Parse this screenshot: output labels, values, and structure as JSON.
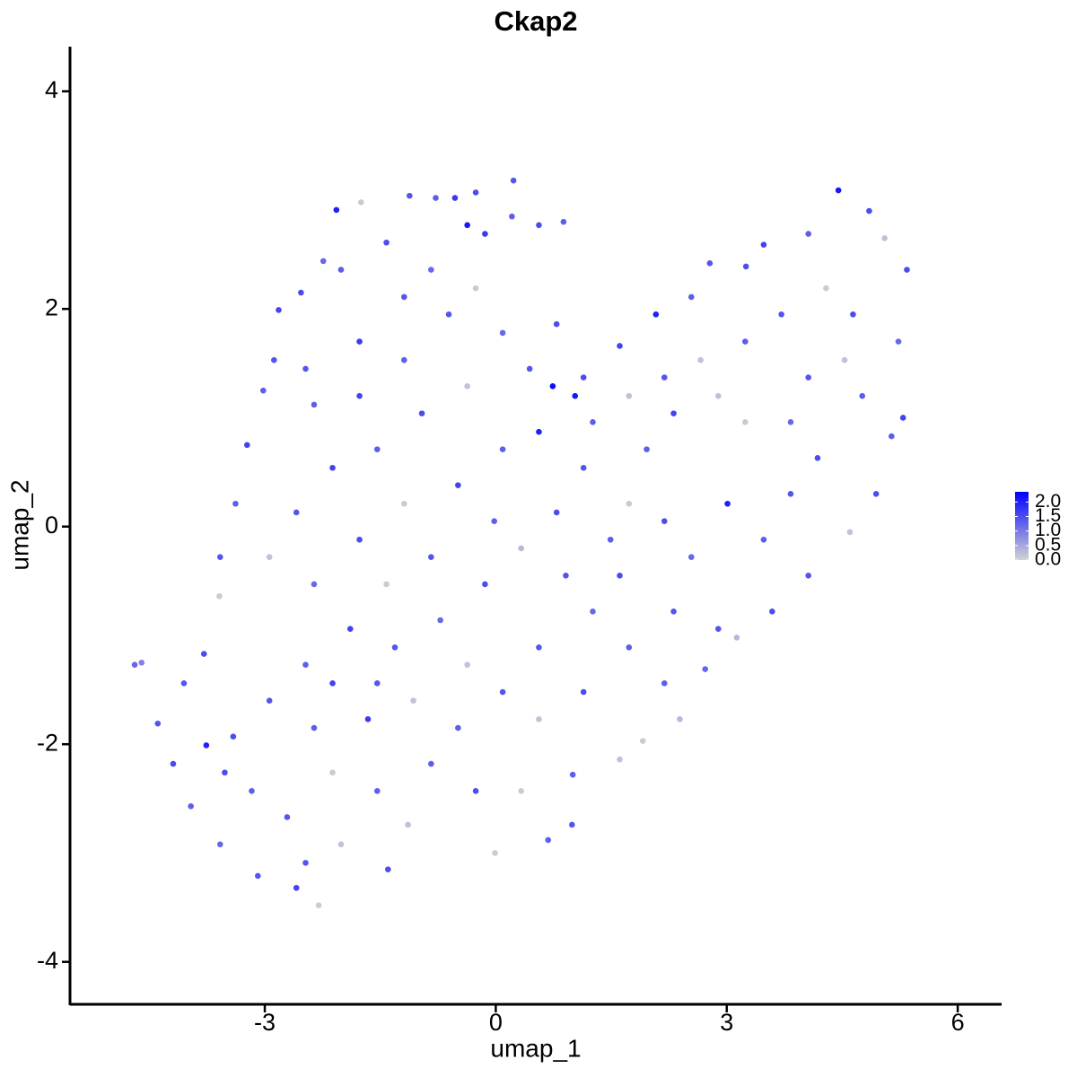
{
  "chart_data": {
    "type": "scatter",
    "title": "Ckap2",
    "x_label": "umap_1",
    "y_label": "umap_2",
    "xlim": [
      -5.53,
      6.57
    ],
    "ylim": [
      -4.39,
      4.41
    ],
    "xticks": [
      -3,
      0,
      3,
      6
    ],
    "yticks": [
      -4,
      -2,
      0,
      2,
      4
    ],
    "color_low": "#d3d3d3",
    "color_high": "#0000ff",
    "colorbar_lim": [
      0,
      2.35
    ],
    "legend": "right",
    "colorbar_ticks": [
      {
        "value": 0,
        "label": "0.0"
      },
      {
        "value": 0.5,
        "label": "0.5"
      },
      {
        "value": 1,
        "label": "1.0"
      },
      {
        "value": 1.5,
        "label": "1.5"
      },
      {
        "value": 2,
        "label": "2.0"
      }
    ],
    "x": [
      -4.69,
      -4.6,
      -4.39,
      -4.19,
      -3.96,
      -3.58,
      -3.09,
      -2.59,
      -2.3,
      -1.4,
      -1.14,
      -0.01,
      0.68,
      0.99,
      1.0,
      1.61,
      1.91,
      2.39,
      2.72,
      3.13,
      3.59,
      4.06,
      4.6,
      4.94,
      5.14,
      5.29,
      5.23,
      5.34,
      5.05,
      4.85,
      4.45,
      4.06,
      3.48,
      3.25,
      2.78,
      2.54,
      2.08,
      1.61,
      1.14,
      0.74,
      1.03,
      0.56,
      0.88,
      0.23,
      -0.26,
      -0.53,
      -0.78,
      -1.12,
      -1.75,
      -2.07,
      -2.24,
      -2.53,
      -2.82,
      -2.88,
      -3.02,
      -3.23,
      -3.38,
      -3.58,
      -3.59,
      -3.79,
      -4.05,
      -1.77,
      -1.19,
      -0.61,
      -0.26,
      0.09,
      0.44,
      -0.37,
      -0.96,
      -1.54,
      -2.12,
      -2.59,
      -2.94,
      -2.36,
      -1.77,
      -1.19,
      -0.49,
      0.09,
      0.56,
      1.14,
      1.73,
      1.49,
      0.91,
      0.33,
      -0.14,
      -0.72,
      -1.31,
      -1.89,
      -2.47,
      -2.94,
      -3.41,
      -3.17,
      -2.71,
      -2.12,
      -1.66,
      -1.07,
      -0.49,
      0.09,
      0.56,
      1.14,
      1.73,
      2.31,
      2.54,
      2.19,
      1.96,
      2.31,
      2.89,
      3.24,
      3.01,
      3.48,
      3.83,
      4.18,
      3.83,
      4.06,
      4.53,
      4.76,
      4.64,
      4.29,
      3.71,
      3.24,
      2.66,
      2.19,
      1.73,
      -0.02,
      -0.84,
      -1.42,
      0.79,
      1.26,
      0.56,
      -0.37,
      -0.84,
      -0.26,
      0.33,
      -1.54,
      -2.01,
      -2.47,
      -3.76,
      -3.52,
      -2.36,
      -2.12,
      -1.54,
      -2.36,
      -1.77,
      -2.47,
      -2.01,
      -1.42,
      -0.84,
      -0.14,
      0.21,
      -0.37,
      -1.19,
      0.79,
      1.26,
      1.61,
      2.19,
      2.89
    ],
    "y": [
      -1.27,
      -1.25,
      -1.81,
      -2.18,
      -2.57,
      -2.92,
      -3.21,
      -3.32,
      -3.48,
      -3.15,
      -2.74,
      -3.0,
      -2.88,
      -2.74,
      -2.28,
      -2.14,
      -1.97,
      -1.77,
      -1.31,
      -1.02,
      -0.78,
      -0.45,
      -0.05,
      0.3,
      0.83,
      1.0,
      1.7,
      2.36,
      2.65,
      2.9,
      3.09,
      2.69,
      2.59,
      2.39,
      2.42,
      2.11,
      1.95,
      1.66,
      1.37,
      1.29,
      1.2,
      2.77,
      2.8,
      3.18,
      3.07,
      3.02,
      3.02,
      3.04,
      2.98,
      2.91,
      2.44,
      2.15,
      1.99,
      1.53,
      1.25,
      0.75,
      0.21,
      -0.28,
      -0.64,
      -1.17,
      -1.44,
      1.7,
      1.53,
      1.95,
      2.19,
      1.78,
      1.45,
      1.29,
      1.04,
      0.71,
      0.54,
      0.13,
      -0.28,
      -0.53,
      -0.12,
      0.21,
      0.38,
      0.71,
      0.87,
      0.54,
      0.21,
      -0.12,
      -0.45,
      -0.2,
      -0.53,
      -0.86,
      -1.11,
      -0.94,
      -1.27,
      -1.6,
      -1.93,
      -2.43,
      -2.67,
      -2.26,
      -1.77,
      -1.6,
      -1.85,
      -1.52,
      -1.77,
      -1.52,
      -1.11,
      -0.78,
      -0.28,
      0.05,
      0.71,
      1.04,
      1.2,
      0.96,
      0.21,
      -0.12,
      0.3,
      0.63,
      0.96,
      1.37,
      1.53,
      1.2,
      1.95,
      2.19,
      1.95,
      1.7,
      1.53,
      1.37,
      1.2,
      0.05,
      -0.28,
      -0.53,
      0.13,
      -0.78,
      -1.11,
      -1.27,
      -2.18,
      -2.43,
      -2.43,
      -2.43,
      -2.92,
      -3.09,
      -2.01,
      -2.26,
      -1.85,
      -1.44,
      -1.44,
      1.12,
      1.2,
      1.45,
      2.36,
      2.61,
      2.36,
      2.69,
      2.85,
      2.77,
      2.11,
      1.86,
      0.96,
      -0.45,
      -1.44,
      -0.94
    ],
    "values": [
      1.2,
      0.9,
      1.4,
      1.5,
      1.3,
      1.2,
      1.4,
      1.6,
      0.1,
      1.5,
      0.2,
      0.1,
      1.3,
      1.4,
      1.3,
      0.2,
      0.1,
      0.3,
      1.2,
      0.3,
      1.5,
      1.4,
      0.2,
      1.5,
      1.3,
      1.6,
      1.2,
      1.5,
      0.2,
      1.5,
      2.1,
      1.3,
      1.6,
      1.5,
      1.4,
      1.3,
      2.0,
      1.6,
      1.5,
      2.2,
      2.1,
      1.5,
      1.3,
      1.4,
      1.5,
      1.7,
      1.3,
      1.4,
      0.1,
      2.0,
      1.2,
      1.5,
      1.6,
      1.4,
      1.3,
      1.6,
      1.3,
      1.4,
      0.1,
      1.5,
      1.4,
      1.7,
      1.3,
      1.4,
      0.1,
      1.2,
      1.4,
      0.2,
      1.5,
      1.3,
      1.6,
      1.4,
      0.2,
      1.2,
      1.5,
      0.1,
      1.6,
      1.3,
      2.0,
      1.4,
      0.1,
      1.3,
      1.4,
      0.3,
      1.5,
      1.2,
      1.4,
      1.6,
      1.3,
      1.4,
      1.5,
      1.3,
      1.4,
      0.1,
      1.7,
      0.2,
      1.3,
      1.4,
      0.2,
      1.5,
      1.3,
      1.4,
      1.2,
      1.5,
      1.3,
      1.6,
      0.2,
      0.1,
      2.0,
      1.3,
      1.4,
      1.5,
      1.2,
      1.4,
      0.2,
      1.3,
      1.5,
      0.1,
      1.4,
      1.3,
      0.2,
      1.4,
      0.2,
      1.3,
      1.4,
      0.1,
      1.5,
      1.2,
      1.4,
      0.2,
      1.3,
      1.5,
      0.1,
      1.3,
      0.2,
      1.4,
      2.0,
      1.5,
      1.3,
      1.6,
      1.4,
      1.3,
      1.6,
      1.4,
      1.3,
      1.5,
      1.2,
      1.7,
      1.3,
      2.1,
      1.4,
      1.5,
      1.3,
      1.5,
      1.3,
      1.4
    ]
  }
}
